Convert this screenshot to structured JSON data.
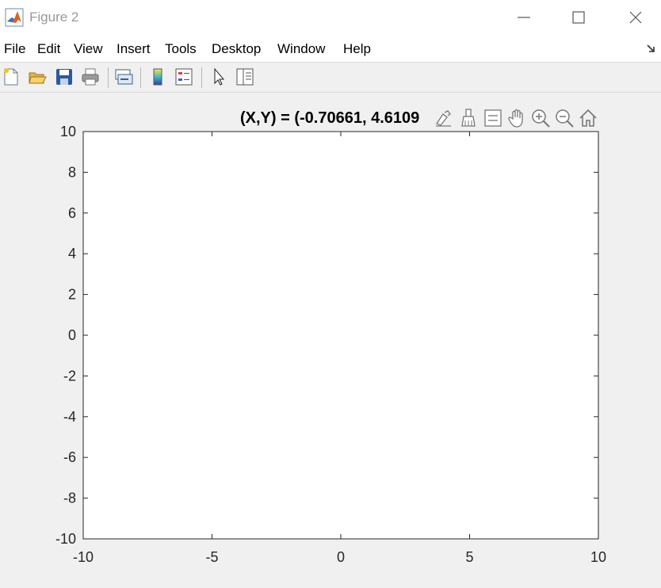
{
  "window": {
    "title": "Figure 2",
    "app_icon": "matlab-logo-icon"
  },
  "menu": [
    "File",
    "Edit",
    "View",
    "Insert",
    "Tools",
    "Desktop",
    "Window",
    "Help"
  ],
  "toolbar": {
    "icons": [
      "new-figure-icon",
      "open-file-icon",
      "save-icon",
      "print-icon",
      "link-plot-icon",
      "insert-colorbar-icon",
      "insert-legend-icon",
      "edit-plot-arrow-icon",
      "property-inspector-icon"
    ]
  },
  "axes_toolbar": {
    "icons": [
      "brush-edit-icon",
      "data-brush-icon",
      "data-tips-icon",
      "pan-hand-icon",
      "zoom-in-icon",
      "zoom-out-icon",
      "restore-view-home-icon"
    ]
  },
  "coordinate_readout": "(X,Y) = (-0.70661, 4.6109",
  "chart_data": {
    "type": "line",
    "series": [],
    "xlim": [
      -10,
      10
    ],
    "ylim": [
      -10,
      10
    ],
    "xticks": [
      -10,
      -5,
      0,
      5,
      10
    ],
    "yticks": [
      -10,
      -8,
      -6,
      -4,
      -2,
      0,
      2,
      4,
      6,
      8,
      10
    ],
    "xtick_labels": [
      "-10",
      "-5",
      "0",
      "5",
      "10"
    ],
    "ytick_labels": [
      "-10",
      "-8",
      "-6",
      "-4",
      "-2",
      "0",
      "2",
      "4",
      "6",
      "8",
      "10"
    ],
    "grid": false,
    "box": true
  },
  "colors": {
    "axes_background": "#ffffff",
    "figure_background": "#f0f0f0",
    "axis_line": "#262626"
  }
}
